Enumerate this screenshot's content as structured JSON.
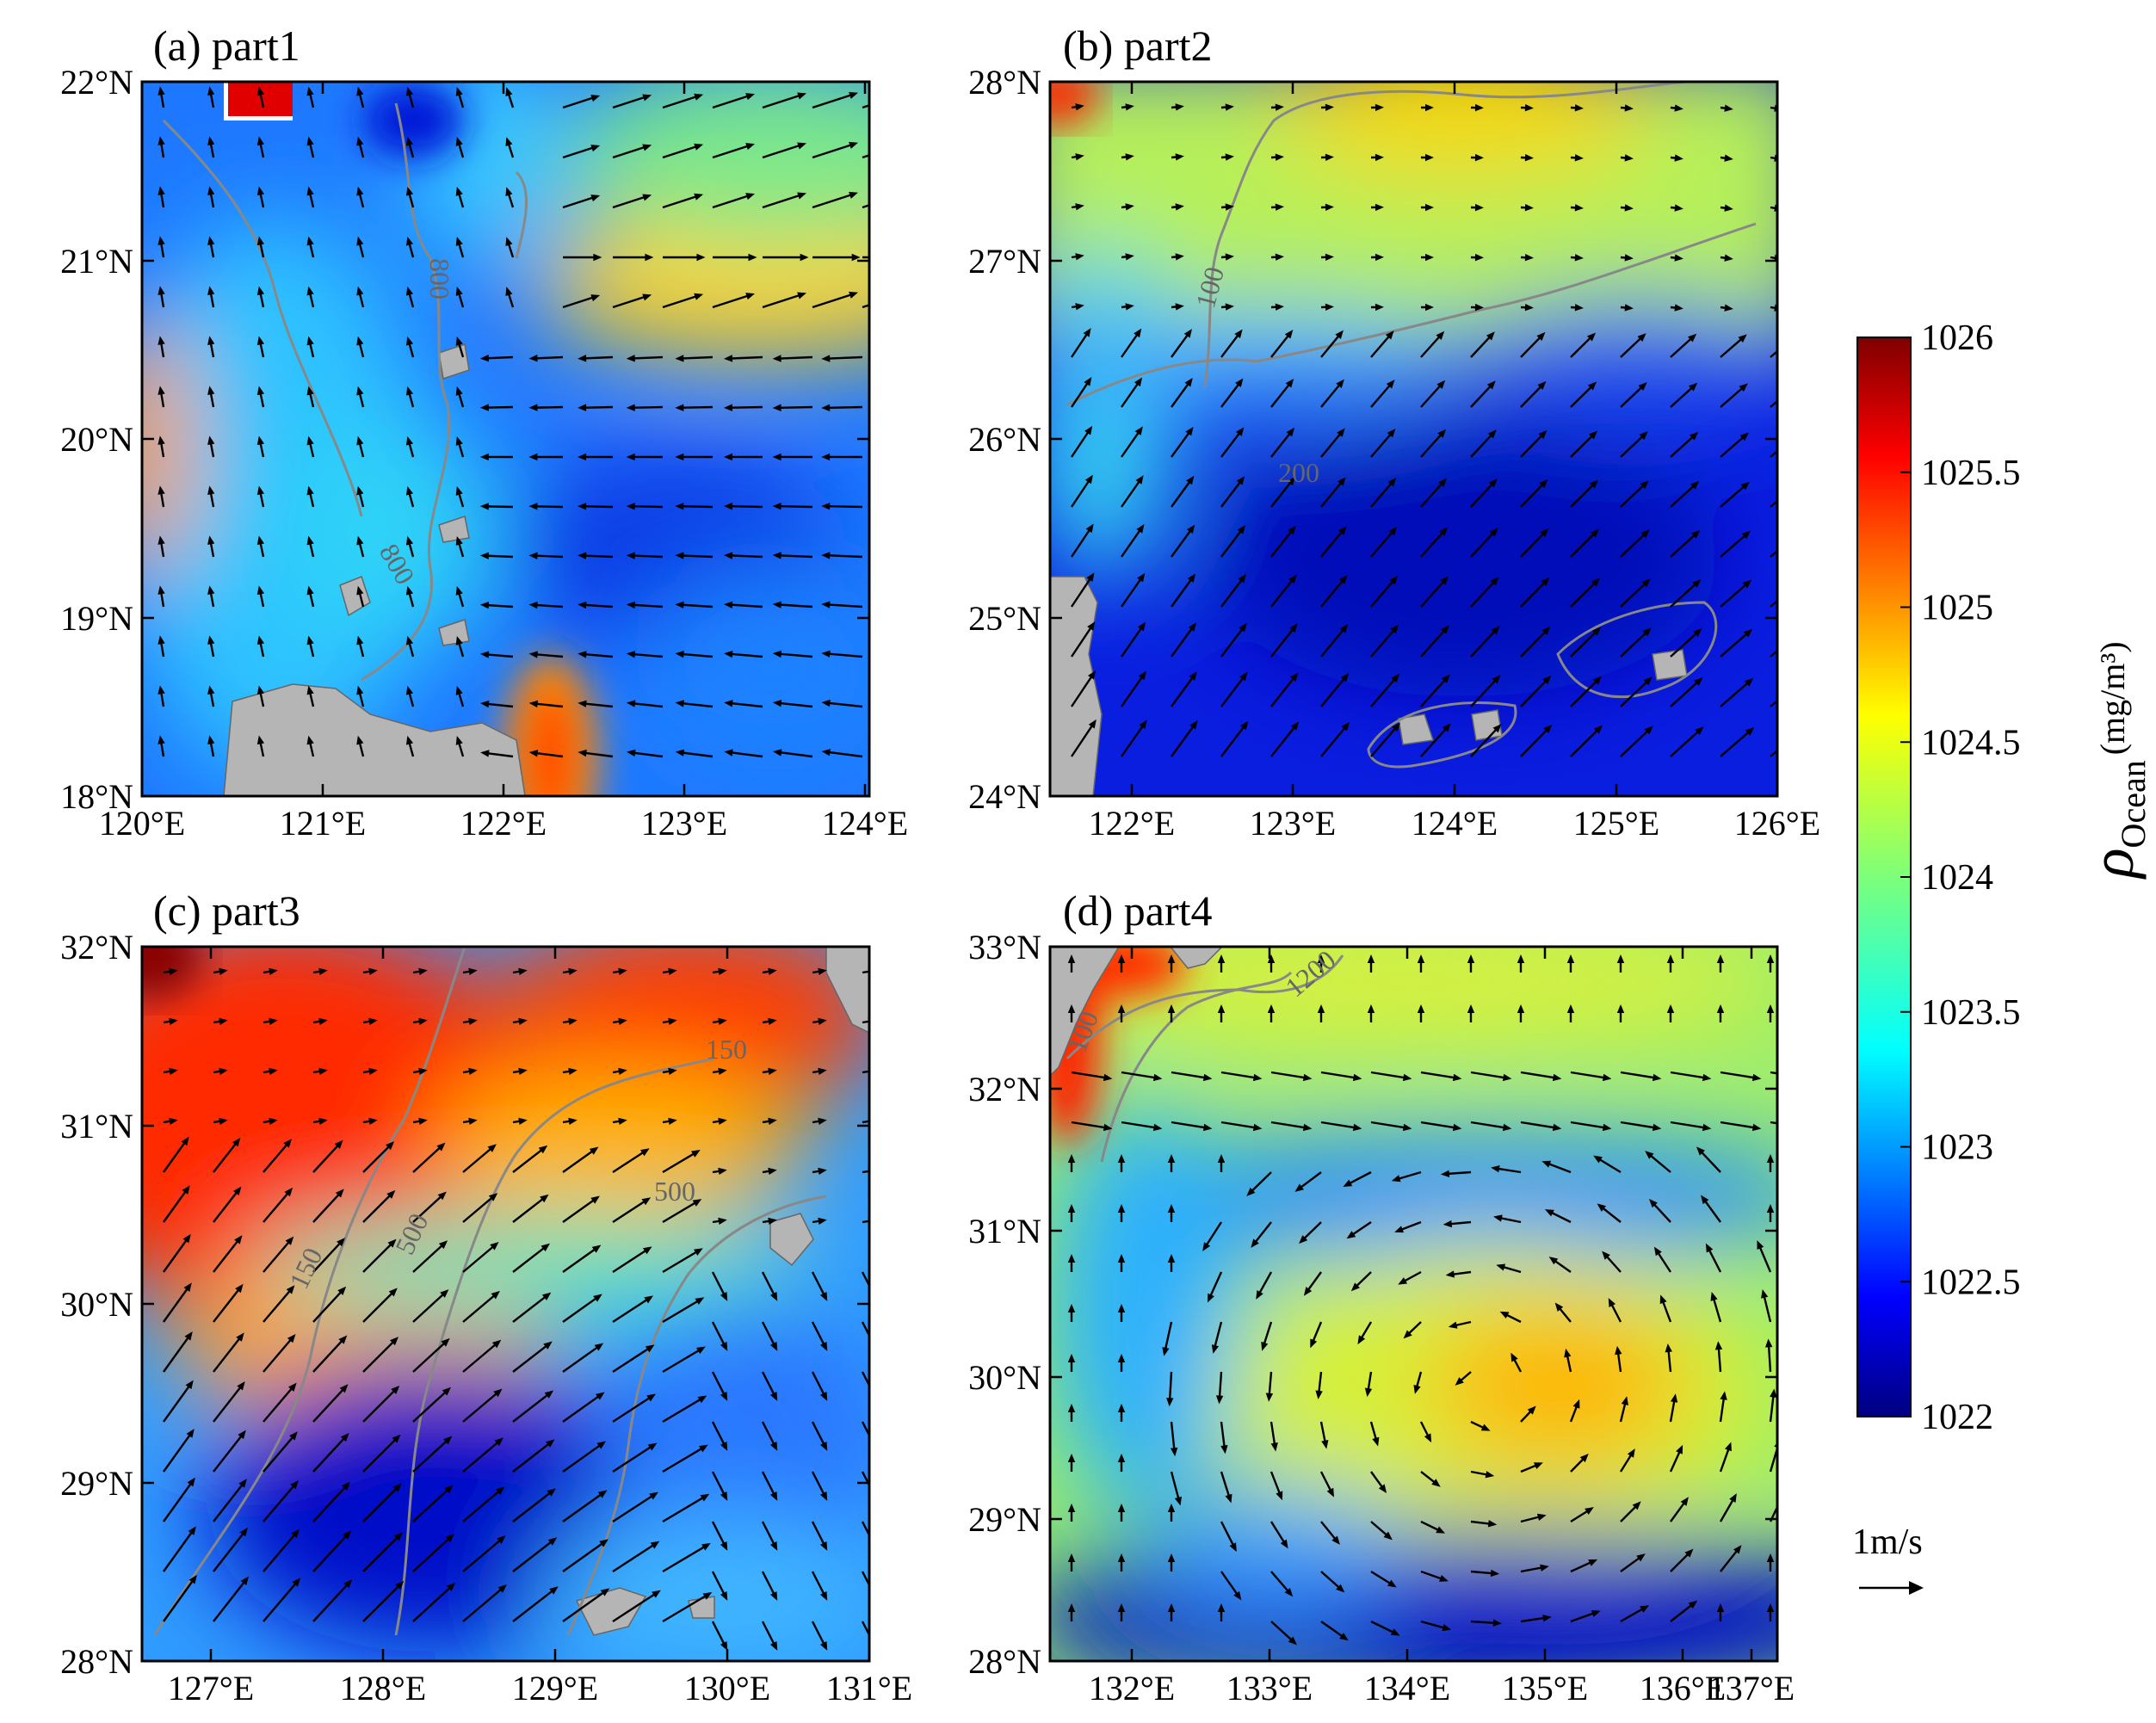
{
  "colorbar": {
    "title": "ρ",
    "title_sub": "Ocean",
    "units": "(mg/m³)",
    "ticks": [
      "1026",
      "1025.5",
      "1025",
      "1024.5",
      "1024",
      "1023.5",
      "1023",
      "1022.5",
      "1022"
    ],
    "range": [
      1022,
      1026
    ],
    "colormap": "jet"
  },
  "legend": {
    "scale_label": "1m/s"
  },
  "colors": {
    "land": "#b5b5b5",
    "contour": "#888888"
  },
  "panels": [
    {
      "id": "a",
      "title": "(a) part1",
      "x_ticks": [
        "120°E",
        "121°E",
        "122°E",
        "123°E",
        "124°E"
      ],
      "y_ticks": [
        "22°N",
        "21°N",
        "20°N",
        "19°N",
        "18°N"
      ],
      "contour_labels": [
        "800",
        "800"
      ]
    },
    {
      "id": "b",
      "title": "(b) part2",
      "x_ticks": [
        "122°E",
        "123°E",
        "124°E",
        "125°E",
        "126°E"
      ],
      "y_ticks": [
        "28°N",
        "27°N",
        "26°N",
        "25°N",
        "24°N"
      ],
      "contour_labels": [
        "100",
        "200"
      ]
    },
    {
      "id": "c",
      "title": "(c) part3",
      "x_ticks": [
        "127°E",
        "128°E",
        "129°E",
        "130°E",
        "131°E"
      ],
      "y_ticks": [
        "32°N",
        "31°N",
        "30°N",
        "29°N",
        "28°N"
      ],
      "contour_labels": [
        "150",
        "500",
        "500",
        "150"
      ]
    },
    {
      "id": "d",
      "title": "(d) part4",
      "x_ticks": [
        "132°E",
        "133°E",
        "134°E",
        "135°E",
        "136°E",
        "137°E"
      ],
      "y_ticks": [
        "33°N",
        "32°N",
        "31°N",
        "30°N",
        "29°N",
        "28°N"
      ],
      "contour_labels": [
        "100",
        "1200"
      ]
    }
  ]
}
